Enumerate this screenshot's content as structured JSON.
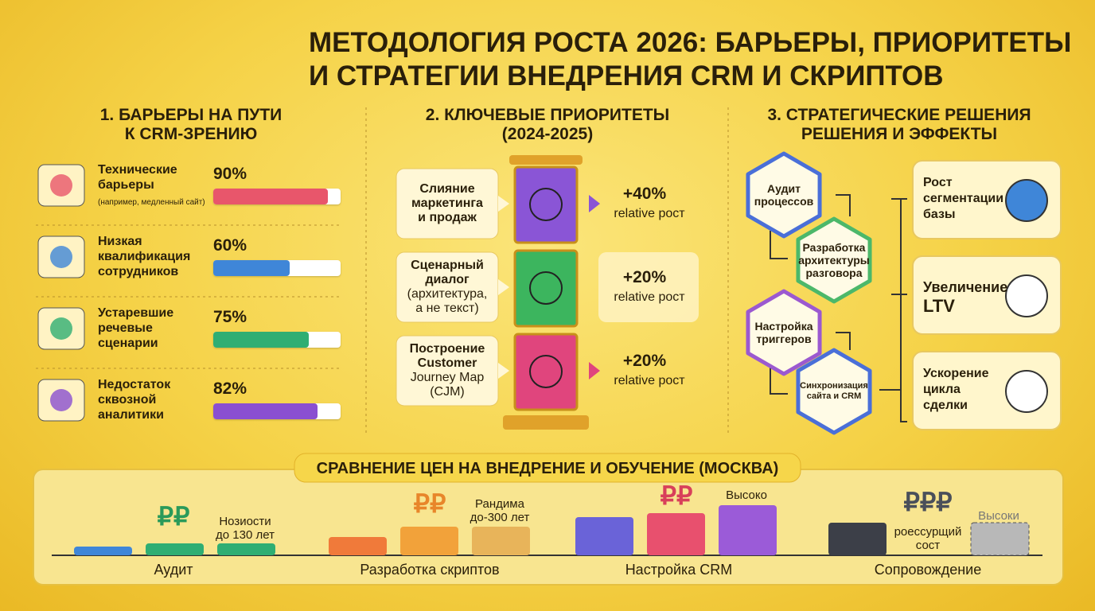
{
  "title": [
    "МЕТОДОЛОГИЯ РОСТА 2026: БАРЬЕРЫ, ПРИОРИТЕТЫ",
    "И СТРАТЕГИИ ВНЕДРЕНИЯ CRM И СКРИПТОВ"
  ],
  "barriers": {
    "title": [
      "1. БАРЬЕРЫ НА ПУТИ",
      "К CRM-ЗРЕНИЮ"
    ],
    "xlim": [
      0,
      100
    ],
    "items": [
      {
        "label": [
          "Технические",
          "барьеры"
        ],
        "note": "(например, медленный сайт)",
        "value": 90,
        "value_label": "90%",
        "color": "#e8566b"
      },
      {
        "label": [
          "Низкая",
          "квалификация",
          "сотрудников"
        ],
        "value": 60,
        "value_label": "60%",
        "color": "#3f86d8"
      },
      {
        "label": [
          "Устаревшие",
          "речевые",
          "сценарии"
        ],
        "value": 75,
        "value_label": "75%",
        "color": "#2fae73"
      },
      {
        "label": [
          "Недостаток",
          "сквозной",
          "аналитики"
        ],
        "value": 82,
        "value_label": "82%",
        "color": "#8a4fd1"
      }
    ]
  },
  "priorities": {
    "title": [
      "2. КЛЮЧЕВЫЕ ПРИОРИТЕТЫ",
      "(2024-2025)"
    ],
    "items": [
      {
        "label": [
          "Слияние",
          "маркетинга",
          "и продаж"
        ],
        "effect": "+40%",
        "effect_note": "relative рост",
        "color": "#8a55d6"
      },
      {
        "label": [
          "Сценарный",
          "диалог",
          "(архитектура,",
          "а не текст)"
        ],
        "effect": "+20%",
        "effect_note": "relative рост",
        "color": "#3cb55e"
      },
      {
        "label": [
          "Построение",
          "Customer",
          "Journey Map",
          "(CJM)"
        ],
        "effect": "+20%",
        "effect_note": "relative рост",
        "color": "#e0457d"
      }
    ]
  },
  "strategies": {
    "title": [
      "3. СТРАТЕГИЧЕСКИЕ РЕШЕНИЯ",
      "РЕШЕНИЯ И ЭФФЕКТЫ"
    ],
    "steps": [
      {
        "label": [
          "Аудит",
          "процессов"
        ],
        "color": "#4a6fd8"
      },
      {
        "label": [
          "Разработка",
          "архитектуры",
          "разговора"
        ],
        "color": "#4cb86a"
      },
      {
        "label": [
          "Настройка",
          "триггеров"
        ],
        "color": "#9b59d0"
      },
      {
        "label": [
          "Синхронизация",
          "сайта и CRM"
        ],
        "color": "#4a6fd8"
      }
    ],
    "results": [
      [
        "Рост",
        "сегментации",
        "базы"
      ],
      [
        "Увеличение",
        "LTV"
      ],
      [
        "Ускорение",
        "цикла",
        "сделки"
      ]
    ]
  },
  "prices": {
    "title": "СРАВНЕНИЕ ЦЕН НА ВНЕДРЕНИЕ И ОБУЧЕНИЕ (МОСКВА)",
    "ylim": [
      0,
      70
    ],
    "groups": [
      {
        "name": "Аудит",
        "values": [
          11,
          15,
          15
        ],
        "colors": [
          "#3f86d8",
          "#2fae73",
          "#2fae73"
        ],
        "symbol": "₽₽",
        "symbol_color": "#2a9a5a",
        "note": [
          "Нозиости",
          "до 130 лет"
        ]
      },
      {
        "name": "Разработка скриптов",
        "values": [
          23,
          36,
          36
        ],
        "colors": [
          "#f07a3a",
          "#f2a23a",
          "#e8b45a"
        ],
        "symbol": "₽₽",
        "symbol_color": "#e8862a",
        "note": [
          "Рандима",
          "до-300 лет"
        ]
      },
      {
        "name": "Настройка CRM",
        "values": [
          48,
          53,
          63
        ],
        "colors": [
          "#6a63d8",
          "#e8506e",
          "#9b5bd8"
        ],
        "symbol": "₽₽",
        "symbol_color": "#d8405a",
        "note": [
          "Высоко"
        ]
      },
      {
        "name": "Сопровождение",
        "values": [
          41,
          41
        ],
        "colors": [
          "#3c3f48",
          "#b8b8b8"
        ],
        "symbol": "₽₽₽",
        "symbol_color": "#4a4f5a",
        "note": [
          "роессурщий",
          "сост"
        ],
        "note2": "Высоки"
      }
    ]
  }
}
